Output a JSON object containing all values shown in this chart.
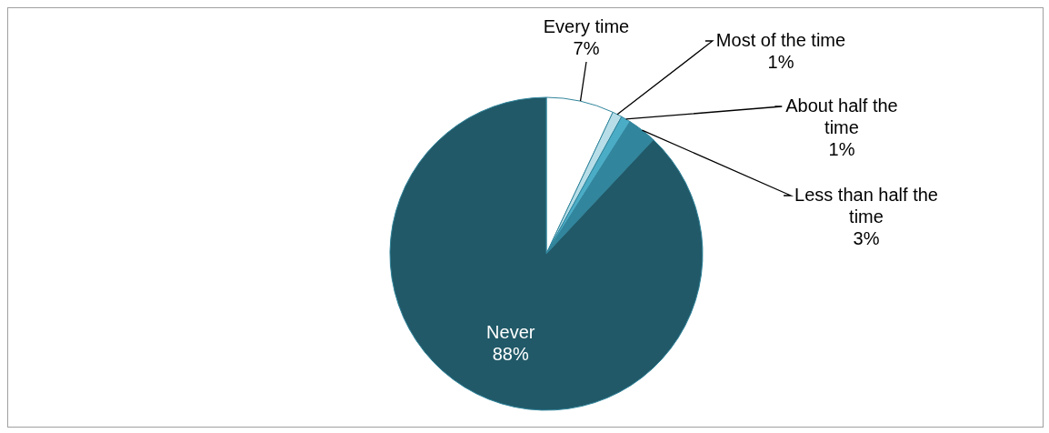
{
  "chart_data": {
    "type": "pie",
    "categories": [
      "Every time",
      "Most of the time",
      "About half the time",
      "Less than half the time",
      "Never"
    ],
    "values": [
      7,
      1,
      1,
      3,
      88
    ],
    "colors": [
      "#ffffff",
      "#b7dee8",
      "#4bacc6",
      "#31859c",
      "#215968"
    ],
    "value_labels": [
      "7%",
      "1%",
      "1%",
      "3%",
      "88%"
    ],
    "legend": false
  }
}
